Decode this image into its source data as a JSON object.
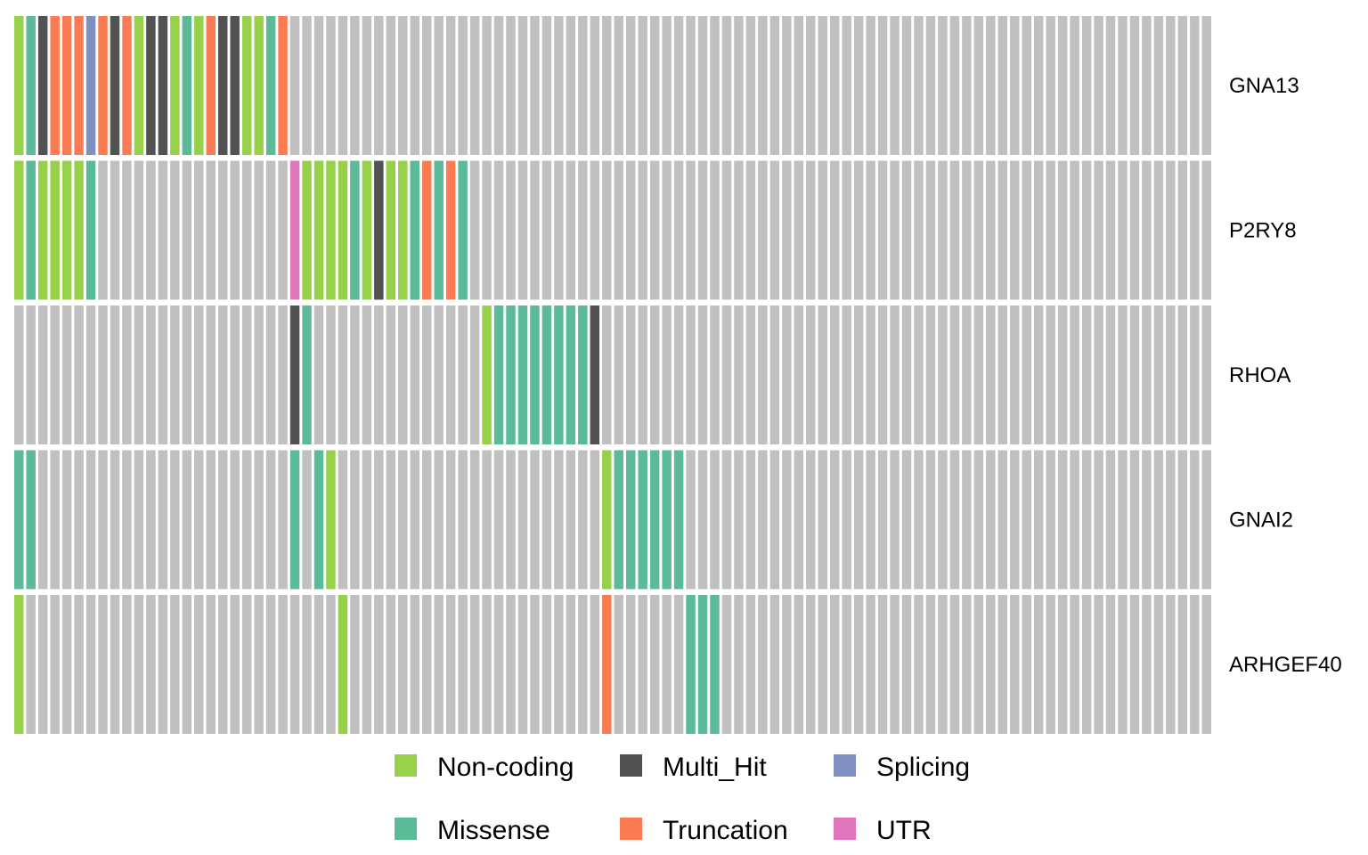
{
  "chart_data": {
    "type": "heatmap",
    "title": "",
    "xlabel": "",
    "ylabel": "",
    "n_samples": 100,
    "background_color": "#C0C0C0",
    "colors": {
      "Non-coding": "#97D14A",
      "Missense": "#5BBA98",
      "Multi_Hit": "#525252",
      "Truncation": "#FB7C52",
      "Splicing": "#7F8FC2",
      "UTR": "#E077BD"
    },
    "genes": [
      {
        "name": "GNA13",
        "mutations": [
          "Non-coding",
          "Missense",
          "Multi_Hit",
          "Truncation",
          "Truncation",
          "Truncation",
          "Splicing",
          "Truncation",
          "Multi_Hit",
          "Truncation",
          "Non-coding",
          "Multi_Hit",
          "Multi_Hit",
          "Non-coding",
          "Missense",
          "Non-coding",
          "Truncation",
          "Multi_Hit",
          "Multi_Hit",
          "Non-coding",
          "Non-coding",
          "Missense",
          "Truncation"
        ]
      },
      {
        "name": "P2RY8",
        "mutations": [
          "Non-coding",
          "Missense",
          "Non-coding",
          "Non-coding",
          "Non-coding",
          "Non-coding",
          "Missense",
          null,
          null,
          null,
          null,
          null,
          null,
          null,
          null,
          null,
          null,
          null,
          null,
          null,
          null,
          null,
          null,
          "UTR",
          "Non-coding",
          "Non-coding",
          "Non-coding",
          "Non-coding",
          "Missense",
          "Non-coding",
          "Multi_Hit",
          "Non-coding",
          "Non-coding",
          "Missense",
          "Truncation",
          "Missense",
          "Truncation",
          "Missense"
        ]
      },
      {
        "name": "RHOA",
        "mutations": [
          null,
          null,
          null,
          null,
          null,
          null,
          null,
          null,
          null,
          null,
          null,
          null,
          null,
          null,
          null,
          null,
          null,
          null,
          null,
          null,
          null,
          null,
          null,
          "Multi_Hit",
          "Missense",
          null,
          null,
          null,
          null,
          null,
          null,
          null,
          null,
          null,
          null,
          null,
          null,
          null,
          null,
          "Non-coding",
          "Missense",
          "Missense",
          "Missense",
          "Missense",
          "Missense",
          "Missense",
          "Missense",
          "Missense",
          "Multi_Hit"
        ]
      },
      {
        "name": "GNAI2",
        "mutations": [
          "Missense",
          "Missense",
          null,
          null,
          null,
          null,
          null,
          null,
          null,
          null,
          null,
          null,
          null,
          null,
          null,
          null,
          null,
          null,
          null,
          null,
          null,
          null,
          null,
          "Missense",
          null,
          "Missense",
          "Non-coding",
          null,
          null,
          null,
          null,
          null,
          null,
          null,
          null,
          null,
          null,
          null,
          null,
          null,
          null,
          null,
          null,
          null,
          null,
          null,
          null,
          null,
          null,
          "Non-coding",
          "Missense",
          "Missense",
          "Missense",
          "Missense",
          "Missense",
          "Missense"
        ]
      },
      {
        "name": "ARHGEF40",
        "mutations": [
          "Non-coding",
          null,
          null,
          null,
          null,
          null,
          null,
          null,
          null,
          null,
          null,
          null,
          null,
          null,
          null,
          null,
          null,
          null,
          null,
          null,
          null,
          null,
          null,
          null,
          null,
          null,
          null,
          "Non-coding",
          null,
          null,
          null,
          null,
          null,
          null,
          null,
          null,
          null,
          null,
          null,
          null,
          null,
          null,
          null,
          null,
          null,
          null,
          null,
          null,
          null,
          "Truncation",
          null,
          null,
          null,
          null,
          null,
          null,
          "Missense",
          "Missense",
          "Missense"
        ]
      }
    ],
    "legend": {
      "position": "bottom",
      "rows": [
        [
          "Non-coding",
          "Multi_Hit",
          "Splicing"
        ],
        [
          "Missense",
          "Truncation",
          "UTR"
        ]
      ]
    }
  }
}
